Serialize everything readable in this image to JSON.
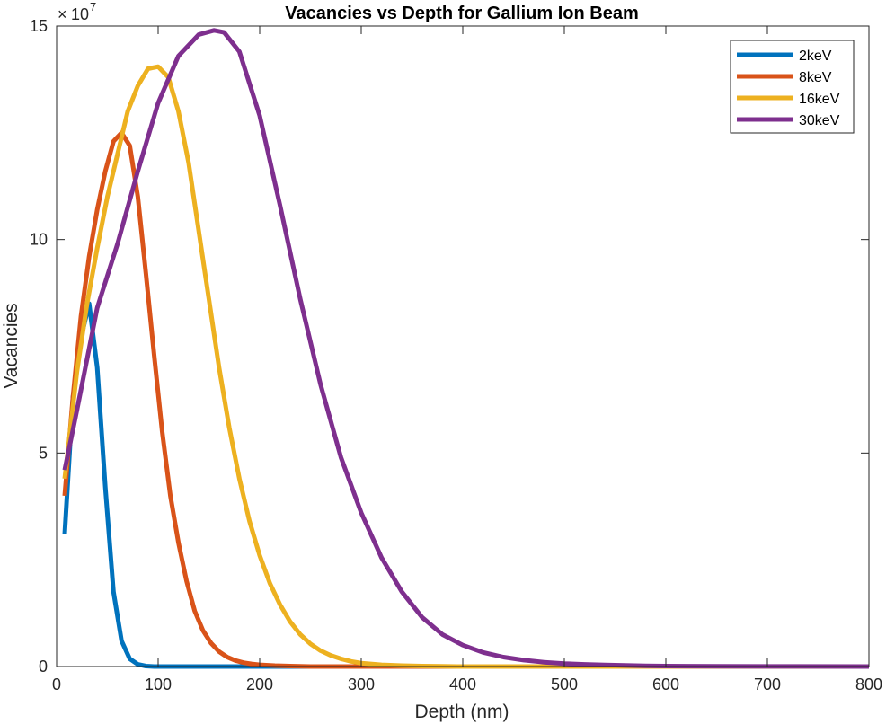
{
  "chart_data": {
    "type": "line",
    "title": "Vacancies vs Depth for Gallium Ion Beam",
    "xlabel": "Depth (nm)",
    "ylabel": "Vacancies",
    "y_multiplier": {
      "base": "10",
      "exponent": "7",
      "sign": "×"
    },
    "xlim": [
      0,
      800
    ],
    "ylim": [
      0,
      15
    ],
    "xticks": [
      "0",
      "100",
      "200",
      "300",
      "400",
      "500",
      "600",
      "700",
      "800"
    ],
    "yticks": [
      "0",
      "5",
      "10",
      "15"
    ],
    "legend_position": "top-right",
    "grid": false,
    "series": [
      {
        "name": "2keV",
        "color": "#0072BD",
        "x": [
          8,
          16,
          24,
          32,
          40,
          48,
          56,
          64,
          72,
          80,
          88,
          96,
          104,
          112,
          120,
          130,
          145,
          160,
          180,
          200,
          800
        ],
        "y": [
          3.1,
          6.3,
          7.7,
          8.5,
          7.0,
          4.2,
          1.75,
          0.6,
          0.18,
          0.05,
          0.01,
          0.0,
          0.0,
          0.0,
          0.0,
          0.0,
          0.0,
          0.0,
          0.0,
          0.0,
          0.0
        ]
      },
      {
        "name": "8keV",
        "color": "#D95319",
        "x": [
          8,
          16,
          24,
          32,
          40,
          48,
          56,
          64,
          72,
          80,
          88,
          96,
          104,
          112,
          120,
          128,
          136,
          144,
          152,
          160,
          168,
          176,
          184,
          192,
          200,
          215,
          230,
          250,
          800
        ],
        "y": [
          4.0,
          6.3,
          8.2,
          9.6,
          10.7,
          11.6,
          12.3,
          12.5,
          12.2,
          11.0,
          9.2,
          7.3,
          5.5,
          4.0,
          2.9,
          2.0,
          1.3,
          0.85,
          0.55,
          0.35,
          0.22,
          0.14,
          0.09,
          0.06,
          0.04,
          0.02,
          0.01,
          0.0,
          0.0
        ]
      },
      {
        "name": "16keV",
        "color": "#EDB120",
        "x": [
          8,
          20,
          30,
          40,
          50,
          60,
          70,
          80,
          90,
          100,
          110,
          120,
          130,
          140,
          150,
          160,
          170,
          180,
          190,
          200,
          210,
          220,
          230,
          240,
          250,
          260,
          270,
          280,
          290,
          300,
          320,
          340,
          360,
          380,
          400,
          450,
          800
        ],
        "y": [
          4.4,
          6.9,
          8.5,
          9.8,
          11.0,
          12.0,
          13.0,
          13.6,
          14.0,
          14.05,
          13.8,
          13.0,
          11.8,
          10.2,
          8.6,
          7.0,
          5.6,
          4.4,
          3.4,
          2.6,
          1.95,
          1.45,
          1.05,
          0.75,
          0.53,
          0.37,
          0.26,
          0.18,
          0.12,
          0.08,
          0.04,
          0.02,
          0.01,
          0.005,
          0.0,
          0.0,
          0.0
        ]
      },
      {
        "name": "30keV",
        "color": "#7E2F8E",
        "x": [
          8,
          20,
          40,
          60,
          80,
          100,
          120,
          140,
          155,
          165,
          180,
          200,
          220,
          240,
          260,
          280,
          300,
          320,
          340,
          360,
          380,
          400,
          420,
          440,
          460,
          480,
          500,
          520,
          540,
          560,
          580,
          600,
          650,
          700,
          800
        ],
        "y": [
          4.6,
          6.0,
          8.4,
          9.9,
          11.6,
          13.2,
          14.3,
          14.8,
          14.9,
          14.85,
          14.4,
          12.9,
          10.8,
          8.6,
          6.6,
          4.9,
          3.6,
          2.55,
          1.75,
          1.15,
          0.75,
          0.5,
          0.33,
          0.22,
          0.15,
          0.1,
          0.07,
          0.05,
          0.035,
          0.025,
          0.015,
          0.01,
          0.005,
          0.002,
          0.0
        ]
      }
    ]
  }
}
